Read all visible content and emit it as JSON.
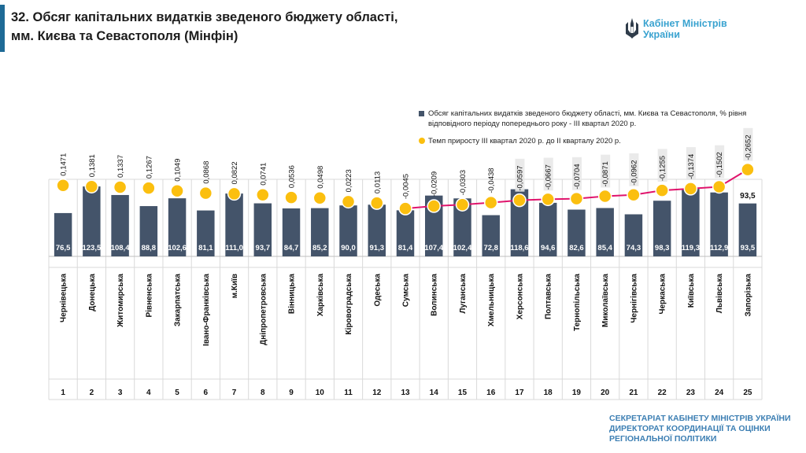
{
  "header": {
    "title_line1": "32. Обсяг капітальних видатків зведеного бюджету області,",
    "title_line2": "мм. Києва та Севастополя (Мінфін)"
  },
  "logo": {
    "icon": "trident-icon",
    "line1": "Кабінет Міністрів",
    "line2": "України"
  },
  "footer": {
    "line1": "СЕКРЕТАРІАТ КАБІНЕТУ МІНІСТРІВ УКРАЇНИ",
    "line2": "ДИРЕКТОРАТ КООРДИНАЦІЇ ТА ОЦІНКИ",
    "line3": "РЕГІОНАЛЬНОЇ ПОЛІТИКИ"
  },
  "colors": {
    "accent": "#1e6a96",
    "bar": "#44546a",
    "dot": "#fbbf0f",
    "line": "#e0146c",
    "footer": "#3d7fb3"
  },
  "chart_data": {
    "type": "bar",
    "legend_position": "top-right",
    "series": [
      {
        "name": "Обсяг капітальних видатків зведеного бюджету області, мм. Києва та Севастополя, % рівня відповідного періоду попереднього року - ІІІ квартал 2020 р.",
        "values": [
          76.5,
          123.5,
          108.4,
          88.8,
          102.6,
          81.1,
          111.0,
          93.7,
          84.7,
          85.2,
          90.0,
          91.3,
          81.4,
          107.4,
          102.4,
          72.8,
          118.6,
          94.6,
          82.6,
          85.4,
          74.3,
          98.3,
          119.3,
          112.9,
          93.5
        ],
        "labels": [
          "76,5",
          "123,5",
          "108,4",
          "88,8",
          "102,6",
          "81,1",
          "111,0",
          "93,7",
          "84,7",
          "85,2",
          "90,0",
          "91,3",
          "81,4",
          "107,4",
          "102,4",
          "72,8",
          "118,6",
          "94,6",
          "82,6",
          "85,4",
          "74,3",
          "98,3",
          "119,3",
          "112,9",
          "93,5"
        ]
      },
      {
        "name": "Темп приросту ІІІ квартал 2020 р. до ІІ кварталу 2020 р.",
        "values": [
          0.1471,
          0.1381,
          0.1337,
          0.1267,
          0.1049,
          0.0868,
          0.0822,
          0.0741,
          0.0536,
          0.0498,
          0.0223,
          0.0113,
          -0.0045,
          -0.0209,
          -0.0303,
          -0.0438,
          -0.0597,
          -0.0667,
          -0.0704,
          -0.0871,
          -0.0962,
          -0.1255,
          -0.1374,
          -0.1502,
          -0.2652
        ],
        "labels": [
          "0,1471",
          "0,1381",
          "0,1337",
          "0,1267",
          "0,1049",
          "0,0868",
          "0,0822",
          "0,0741",
          "0,0536",
          "0,0498",
          "0,0223",
          "0,0113",
          "-0,0045",
          "-0,0209",
          "-0,0303",
          "-0,0438",
          "-0,0597",
          "-0,0667",
          "-0,0704",
          "-0,0871",
          "-0,0962",
          "-0,1255",
          "-0,1374",
          "-0,1502",
          "-0,2652"
        ]
      }
    ],
    "categories": [
      "Чернівецька",
      "Донецька",
      "Житомирська",
      "Рівненська",
      "Закарпатська",
      "Івано-Франківська",
      "м.Київ",
      "Дніпропетровська",
      "Вінницька",
      "Харківська",
      "Кіровоградська",
      "Одеська",
      "Сумська",
      "Волинська",
      "Луганська",
      "Хмельницька",
      "Херсонська",
      "Полтавська",
      "Тернопільська",
      "Миколаївська",
      "Чернігівська",
      "Черкаська",
      "Київська",
      "Львівська",
      "Запорізька"
    ],
    "ranks": [
      "1",
      "2",
      "3",
      "4",
      "5",
      "6",
      "7",
      "8",
      "9",
      "10",
      "11",
      "12",
      "13",
      "14",
      "15",
      "16",
      "17",
      "18",
      "19",
      "20",
      "21",
      "22",
      "23",
      "24",
      "25"
    ]
  }
}
